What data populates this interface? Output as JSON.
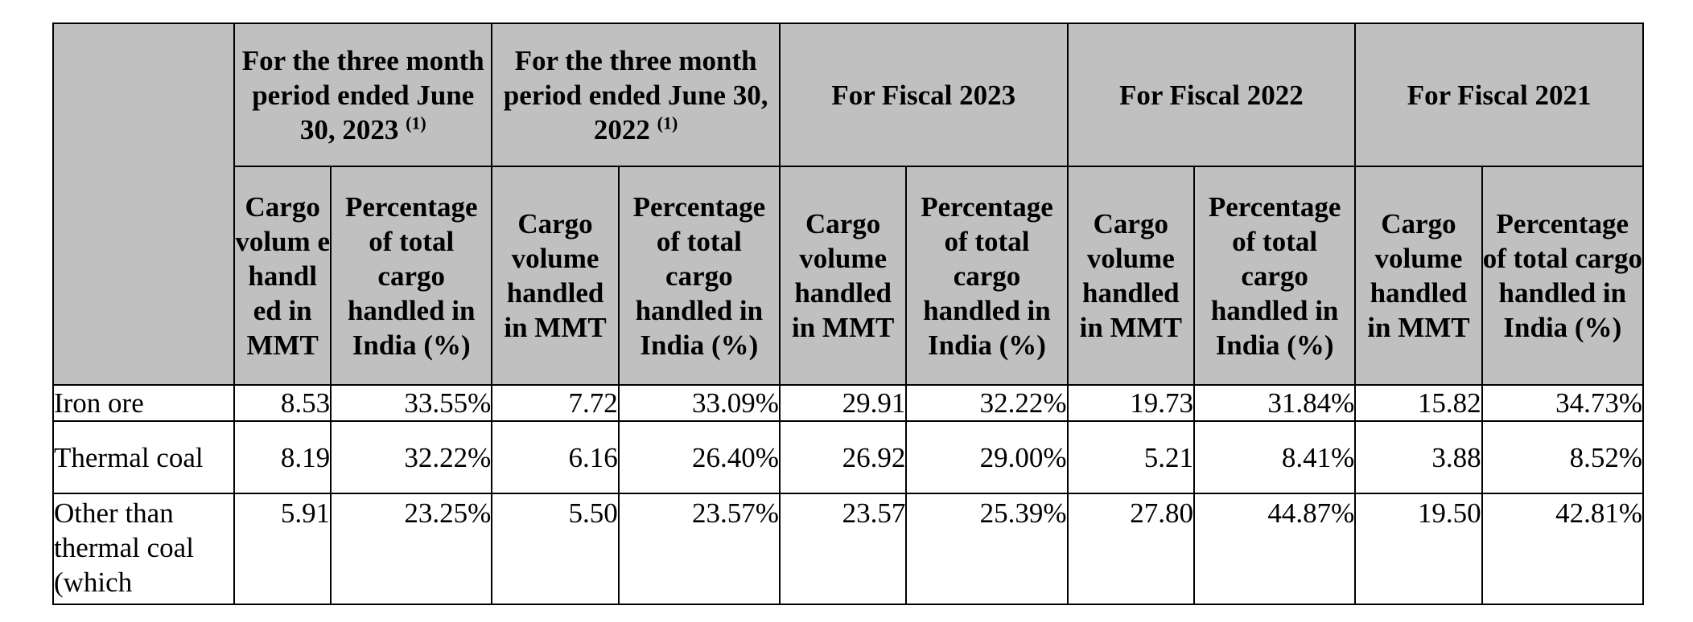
{
  "table": {
    "groups": [
      {
        "title": "For the three month period ended June 30, 2023",
        "note": "(1)"
      },
      {
        "title": "For the three month period ended June 30, 2022",
        "note": "(1)"
      },
      {
        "title": "For Fiscal 2023",
        "note": ""
      },
      {
        "title": "For Fiscal 2022",
        "note": ""
      },
      {
        "title": "For Fiscal 2021",
        "note": ""
      }
    ],
    "col_volume": "Cargo volume handled in MMT",
    "col_volume_first": "Cargo volum e handl ed in MMT",
    "col_percent": "Percentage of total cargo handled in India (%)",
    "rows": [
      {
        "label": "Iron ore",
        "values": [
          "8.53",
          "33.55%",
          "7.72",
          "33.09%",
          "29.91",
          "32.22%",
          "19.73",
          "31.84%",
          "15.82",
          "34.73%"
        ]
      },
      {
        "label": "Thermal coal",
        "values": [
          "8.19",
          "32.22%",
          "6.16",
          "26.40%",
          "26.92",
          "29.00%",
          "5.21",
          "8.41%",
          "3.88",
          "8.52%"
        ]
      },
      {
        "label": "Other than thermal coal (which",
        "values": [
          "5.91",
          "23.25%",
          "5.50",
          "23.57%",
          "23.57",
          "25.39%",
          "27.80",
          "44.87%",
          "19.50",
          "42.81%"
        ]
      }
    ]
  }
}
